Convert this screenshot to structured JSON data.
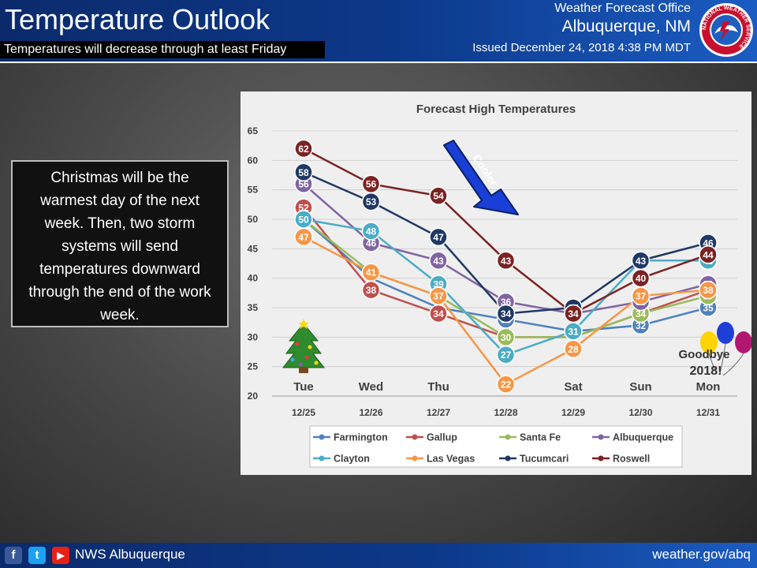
{
  "header": {
    "title": "Temperature Outlook",
    "subtitle": "Temperatures will decrease through at least Friday",
    "office": "Weather Forecast Office",
    "city": "Albuquerque, NM",
    "issued": "Issued December 24, 2018 4:38 PM MDT",
    "seal_text": "NATIONAL WEATHER SERVICE"
  },
  "callout": "Christmas will be the warmest day of the next week. Then, two storm systems will send temperatures downward through the end of the work week.",
  "chart_data": {
    "type": "line",
    "title": "Forecast High Temperatures",
    "days": [
      "Tue",
      "Wed",
      "Thu",
      "",
      "Sat",
      "Sun",
      "Mon"
    ],
    "categories": [
      "12/25",
      "12/26",
      "12/27",
      "12/28",
      "12/29",
      "12/30",
      "12/31"
    ],
    "ylim": [
      20,
      65
    ],
    "yticks": [
      20,
      25,
      30,
      35,
      40,
      45,
      50,
      55,
      60,
      65
    ],
    "grid": true,
    "legend_position": "bottom",
    "series": [
      {
        "name": "Farmington",
        "color": "#4f81bd",
        "values": [
          50,
          40,
          35,
          33,
          31,
          32,
          35
        ],
        "labels": [
          null,
          null,
          null,
          33,
          null,
          32,
          35
        ]
      },
      {
        "name": "Gallup",
        "color": "#c0504d",
        "values": [
          52,
          38,
          34,
          30,
          30,
          34,
          38
        ],
        "labels": [
          52,
          38,
          34,
          null,
          null,
          null,
          null
        ]
      },
      {
        "name": "Santa Fe",
        "color": "#9bbb59",
        "values": [
          50,
          41,
          37,
          30,
          30,
          34,
          37
        ],
        "labels": [
          null,
          null,
          null,
          30,
          null,
          34,
          37
        ]
      },
      {
        "name": "Albuquerque",
        "color": "#8064a2",
        "values": [
          56,
          46,
          43,
          36,
          34,
          36,
          39
        ],
        "labels": [
          56,
          46,
          43,
          36,
          null,
          36,
          39
        ]
      },
      {
        "name": "Clayton",
        "color": "#4bacc6",
        "values": [
          50,
          48,
          39,
          27,
          31,
          43,
          43
        ],
        "labels": [
          50,
          48,
          39,
          27,
          31,
          null,
          43
        ]
      },
      {
        "name": "Las Vegas",
        "color": "#f79646",
        "values": [
          47,
          41,
          37,
          22,
          28,
          37,
          38
        ],
        "labels": [
          47,
          41,
          37,
          22,
          28,
          37,
          38
        ]
      },
      {
        "name": "Tucumcari",
        "color": "#1f3864",
        "values": [
          58,
          53,
          47,
          34,
          35,
          43,
          46
        ],
        "labels": [
          58,
          53,
          47,
          34,
          35,
          43,
          46
        ]
      },
      {
        "name": "Roswell",
        "color": "#7b2323",
        "values": [
          62,
          56,
          54,
          43,
          34,
          40,
          44
        ],
        "labels": [
          62,
          56,
          54,
          43,
          34,
          40,
          44
        ]
      }
    ],
    "annotations": {
      "arrow_text": "Cooler",
      "goodbye_line1": "Goodbye",
      "goodbye_line2": "2018!"
    }
  },
  "footer": {
    "handle": "NWS Albuquerque",
    "website": "weather.gov/abq",
    "facebook_glyph": "f",
    "twitter_glyph": "t",
    "youtube_glyph": "▶"
  }
}
